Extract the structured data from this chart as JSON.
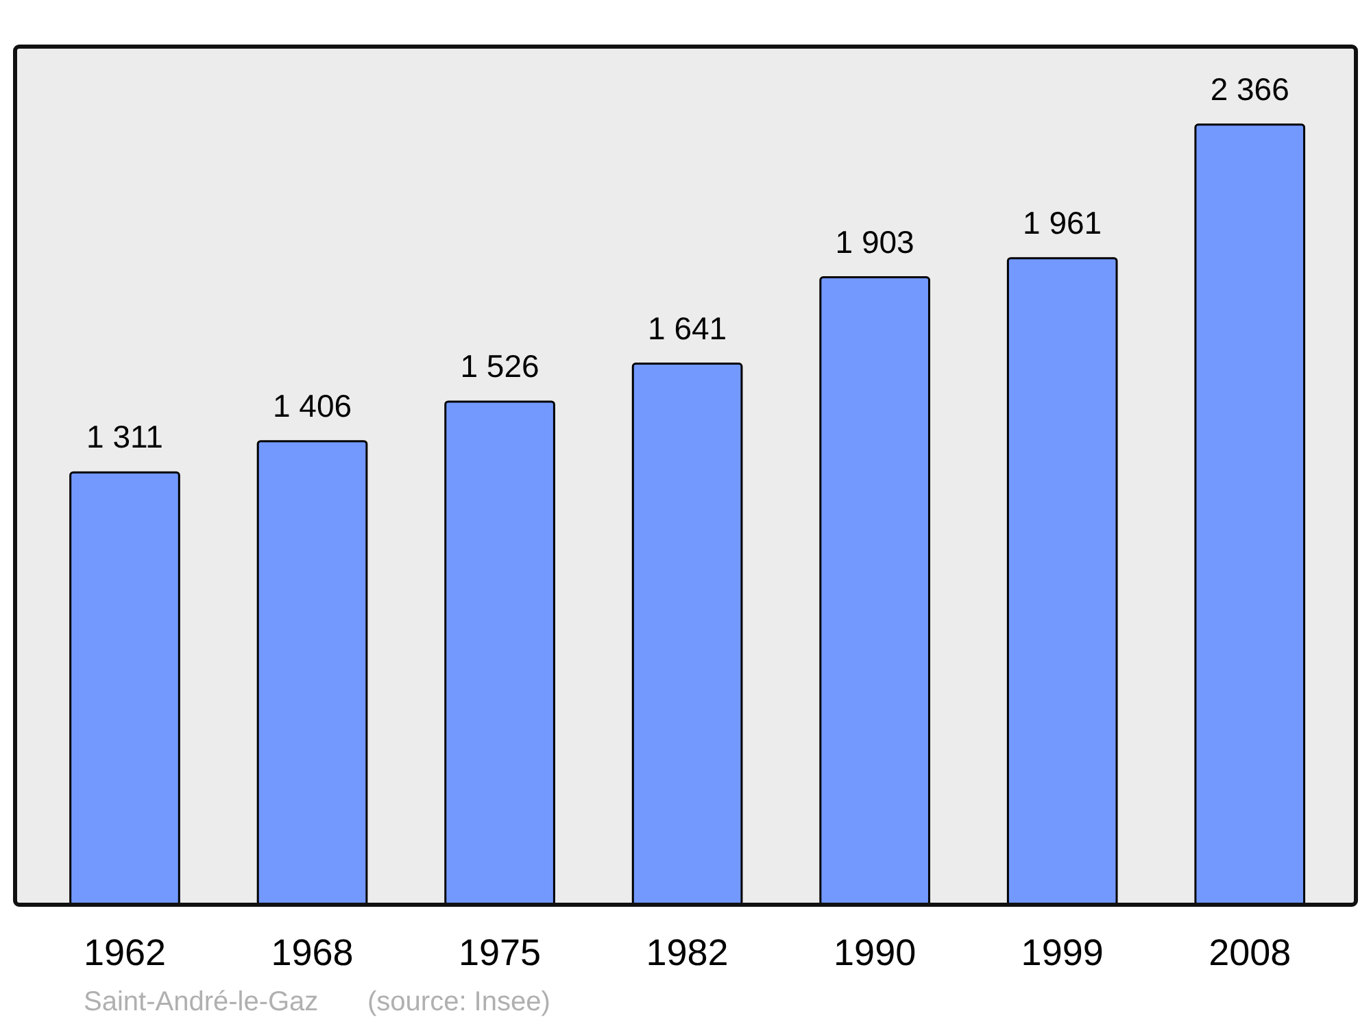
{
  "chart_data": {
    "type": "bar",
    "categories": [
      "1962",
      "1968",
      "1975",
      "1982",
      "1990",
      "1999",
      "2008"
    ],
    "values": [
      1311,
      1406,
      1526,
      1641,
      1903,
      1961,
      2366
    ],
    "value_labels": [
      "1 311",
      "1 406",
      "1 526",
      "1 641",
      "1 903",
      "1 961",
      "2 366"
    ],
    "color": "#7399ff",
    "annotations": [
      "Saint-André-le-Gaz",
      "(source: Insee)"
    ]
  }
}
